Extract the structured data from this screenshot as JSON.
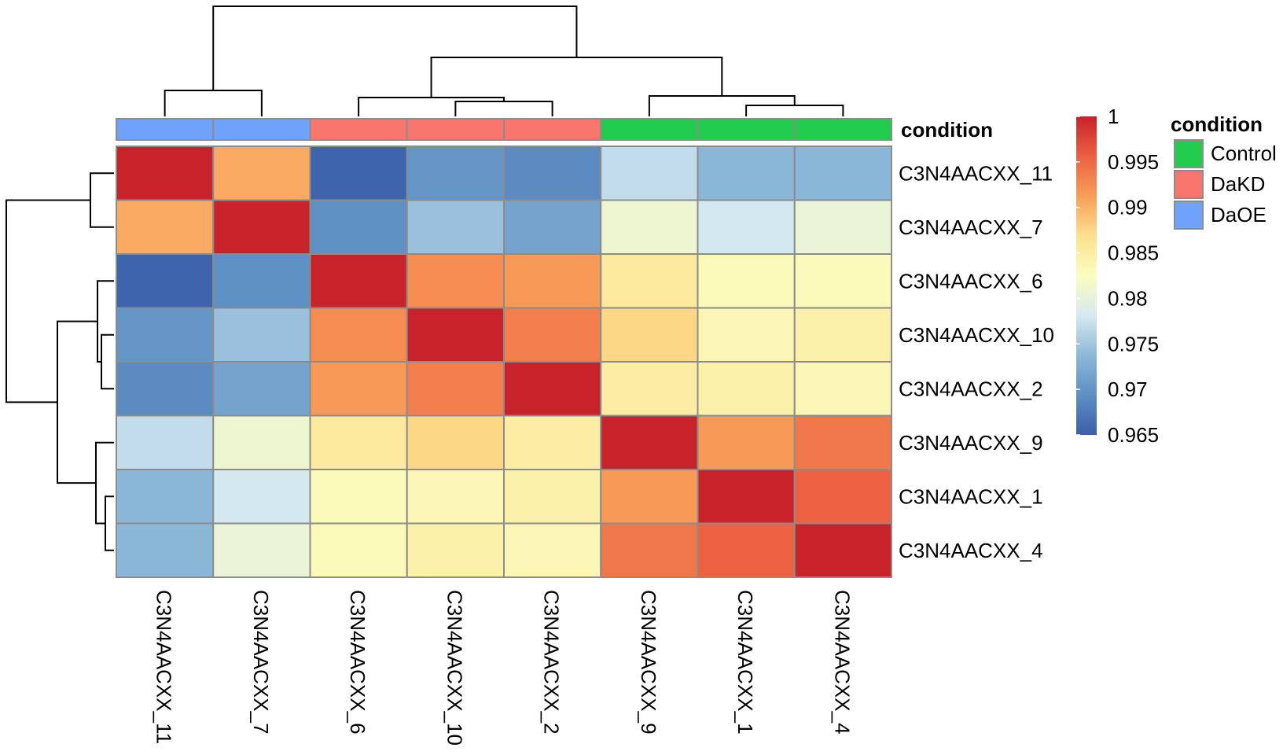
{
  "chart_data": {
    "type": "heatmap",
    "annotation_title": "condition",
    "row_labels": [
      "C3N4AACXX_11",
      "C3N4AACXX_7",
      "C3N4AACXX_6",
      "C3N4AACXX_10",
      "C3N4AACXX_2",
      "C3N4AACXX_9",
      "C3N4AACXX_1",
      "C3N4AACXX_4"
    ],
    "col_labels": [
      "C3N4AACXX_11",
      "C3N4AACXX_7",
      "C3N4AACXX_6",
      "C3N4AACXX_10",
      "C3N4AACXX_2",
      "C3N4AACXX_9",
      "C3N4AACXX_1",
      "C3N4AACXX_4"
    ],
    "col_conditions": [
      "DaOE",
      "DaOE",
      "DaKD",
      "DaKD",
      "DaKD",
      "Control",
      "Control",
      "Control"
    ],
    "values": [
      [
        1.0,
        0.9905,
        0.9655,
        0.97,
        0.969,
        0.977,
        0.9735,
        0.9735
      ],
      [
        0.9905,
        1.0,
        0.9695,
        0.9745,
        0.9715,
        0.981,
        0.978,
        0.9805
      ],
      [
        0.9655,
        0.9695,
        1.0,
        0.9925,
        0.9915,
        0.9855,
        0.983,
        0.983
      ],
      [
        0.97,
        0.9745,
        0.9925,
        1.0,
        0.9935,
        0.9875,
        0.9835,
        0.9845
      ],
      [
        0.969,
        0.9715,
        0.9915,
        0.9935,
        1.0,
        0.985,
        0.9845,
        0.9835
      ],
      [
        0.977,
        0.981,
        0.9855,
        0.9875,
        0.985,
        1.0,
        0.9915,
        0.994
      ],
      [
        0.9735,
        0.978,
        0.983,
        0.9835,
        0.9845,
        0.9915,
        1.0,
        0.9955
      ],
      [
        0.9735,
        0.9805,
        0.983,
        0.9845,
        0.9835,
        0.994,
        0.9955,
        1.0
      ]
    ],
    "colorbar": {
      "min": 0.965,
      "max": 1,
      "ticks": [
        1,
        0.995,
        0.99,
        0.985,
        0.98,
        0.975,
        0.97,
        0.965
      ],
      "tick_labels": [
        "1",
        "0.995",
        "0.99",
        "0.985",
        "0.98",
        "0.975",
        "0.97",
        "0.965"
      ],
      "palette": [
        "#3A5FA8",
        "#5E8FC3",
        "#8DB8D9",
        "#D6E9F1",
        "#FBFDC1",
        "#FCE08E",
        "#F89E58",
        "#EC6042",
        "#C8222A"
      ]
    },
    "legend": {
      "title": "condition",
      "entries": [
        {
          "label": "Control",
          "color": "#22CC4F"
        },
        {
          "label": "DaKD",
          "color": "#F8766D"
        },
        {
          "label": "DaOE",
          "color": "#6FA2FB"
        }
      ]
    }
  }
}
